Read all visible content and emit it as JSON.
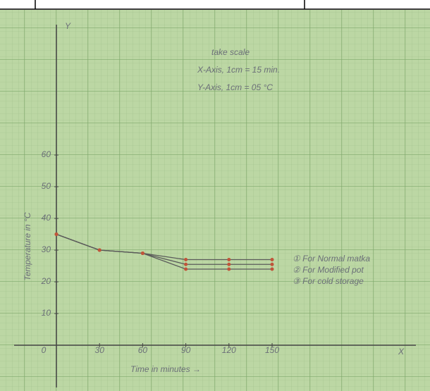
{
  "chart_data": {
    "type": "line",
    "notes": [
      "take scale",
      "X-Axis, 1cm = 15 min.",
      "Y-Axis, 1cm = 05 °C"
    ],
    "x_label": "Time in minutes →",
    "y_label": "Temperature in °C",
    "x_axis_letter": "X",
    "y_axis_letter": "Y",
    "x": [
      0,
      30,
      60,
      90,
      120,
      150
    ],
    "series": [
      {
        "name": "① For Normal matka",
        "color": "#5a5a5a",
        "values": [
          35,
          30,
          29,
          27,
          27,
          27
        ]
      },
      {
        "name": "② For Modified pot",
        "color": "#5a5a5a",
        "values": [
          35,
          30,
          29,
          25.5,
          25.5,
          25.5
        ]
      },
      {
        "name": "③ For cold storage",
        "color": "#5a5a5a",
        "values": [
          35,
          30,
          29,
          24,
          24,
          24
        ]
      }
    ],
    "point_color": "#c0553a",
    "xlim": [
      0,
      250
    ],
    "ylim": [
      0,
      100
    ],
    "xticks": [
      0,
      30,
      60,
      90,
      120,
      150
    ],
    "yticks": [
      10,
      20,
      30,
      40,
      50,
      60
    ],
    "grid": true
  }
}
